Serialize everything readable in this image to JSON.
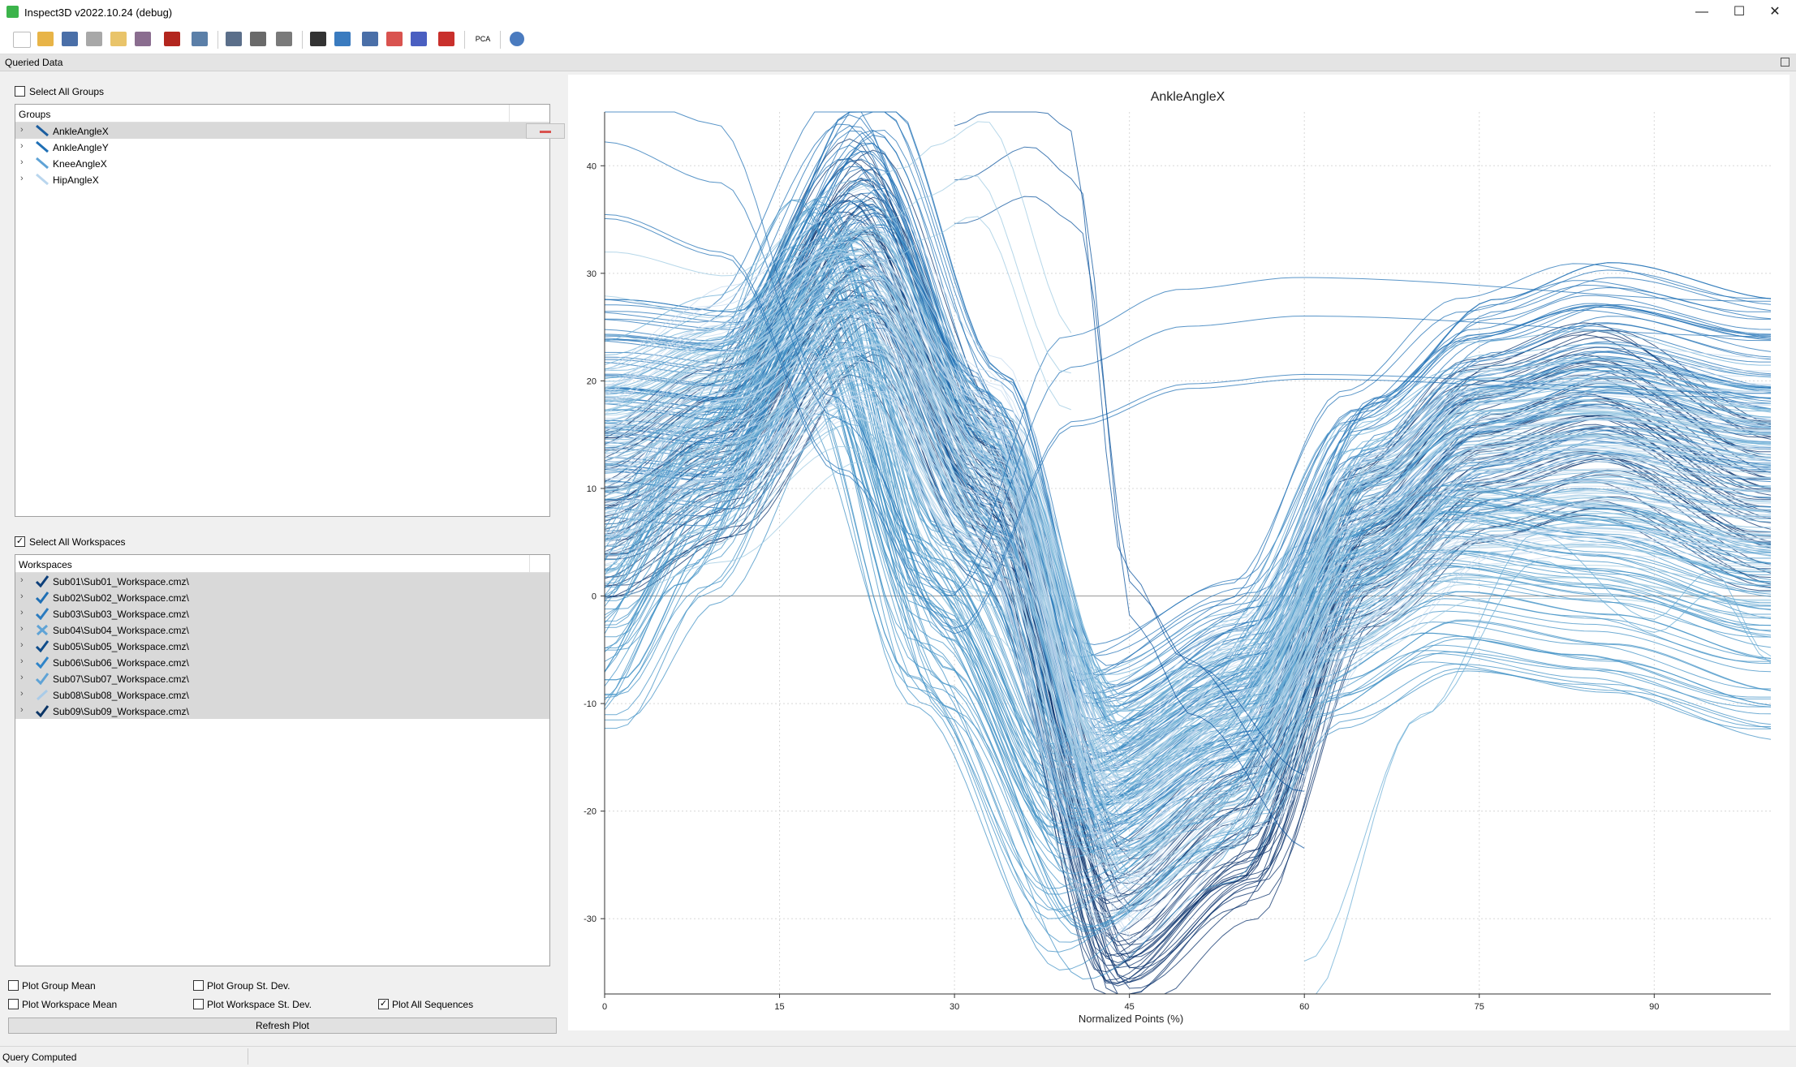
{
  "window": {
    "title": "Inspect3D v2022.10.24 (debug)",
    "min": "—",
    "max": "☐",
    "close": "✕"
  },
  "toolbar": {
    "icons": [
      "new-file",
      "open-folder",
      "save",
      "save-disabled",
      "measure",
      "export-pdf",
      "import",
      "dropdown-menu",
      "save-plot",
      "rotate",
      "curve",
      "sequence",
      "clapper",
      "graph-dropdown",
      "grid",
      "bell-curve",
      "filter-off",
      "pca-dropdown",
      "help-dropdown"
    ],
    "pca_label": "PCA"
  },
  "panel": {
    "title": "Queried Data"
  },
  "groups": {
    "select_all_label": "Select All Groups",
    "select_all_checked": false,
    "header": "Groups",
    "items": [
      {
        "label": "AnkleAngleX",
        "color": "#1a5d9f",
        "selected": true
      },
      {
        "label": "AnkleAngleY",
        "color": "#1f6fb5",
        "selected": false
      },
      {
        "label": "KneeAngleX",
        "color": "#5fa3d6",
        "selected": false
      },
      {
        "label": "HipAngleX",
        "color": "#b9d6ee",
        "selected": false
      }
    ]
  },
  "workspaces": {
    "select_all_label": "Select All Workspaces",
    "select_all_checked": true,
    "header": "Workspaces",
    "items": [
      {
        "label": "Sub01\\Sub01_Workspace.cmz\\",
        "mark": "check",
        "color": "#0d3f7a"
      },
      {
        "label": "Sub02\\Sub02_Workspace.cmz\\",
        "mark": "check",
        "color": "#1f6fb5"
      },
      {
        "label": "Sub03\\Sub03_Workspace.cmz\\",
        "mark": "check",
        "color": "#2b7bbf"
      },
      {
        "label": "Sub04\\Sub04_Workspace.cmz\\",
        "mark": "cross",
        "color": "#5fa3d6"
      },
      {
        "label": "Sub05\\Sub05_Workspace.cmz\\",
        "mark": "check",
        "color": "#0f4c8a"
      },
      {
        "label": "Sub06\\Sub06_Workspace.cmz\\",
        "mark": "check",
        "color": "#2f84c8"
      },
      {
        "label": "Sub07\\Sub07_Workspace.cmz\\",
        "mark": "check",
        "color": "#5fa3d6"
      },
      {
        "label": "Sub08\\Sub08_Workspace.cmz\\",
        "mark": "slash",
        "color": "#a9cbe8"
      },
      {
        "label": "Sub09\\Sub09_Workspace.cmz\\",
        "mark": "check",
        "color": "#0b3566"
      }
    ]
  },
  "options": {
    "plot_group_mean": {
      "label": "Plot Group Mean",
      "checked": false
    },
    "plot_group_sd": {
      "label": "Plot Group St. Dev.",
      "checked": false
    },
    "plot_workspace_mean": {
      "label": "Plot Workspace Mean",
      "checked": false
    },
    "plot_workspace_sd": {
      "label": "Plot Workspace St. Dev.",
      "checked": false
    },
    "plot_all_sequences": {
      "label": "Plot All Sequences",
      "checked": true
    }
  },
  "refresh_label": "Refresh Plot",
  "status": "Query Computed",
  "chart_data": {
    "type": "line",
    "title": "AnkleAngleX",
    "xlabel": "Normalized Points (%)",
    "ylabel": "",
    "xlim": [
      0,
      100
    ],
    "ylim": [
      -37,
      45
    ],
    "xticks": [
      0,
      15,
      30,
      45,
      60,
      75,
      90
    ],
    "yticks": [
      -30,
      -20,
      -10,
      0,
      10,
      20,
      30,
      40
    ],
    "grid": true,
    "legend": "none",
    "series": [
      {
        "color": "#08306b",
        "count": 45,
        "spread": 2.5,
        "x": [
          0,
          10,
          22,
          33,
          44,
          55,
          65,
          75,
          85,
          100
        ],
        "y": [
          8,
          14,
          32,
          10,
          -31,
          -22,
          5,
          14,
          17,
          9
        ]
      },
      {
        "color": "#2171b5",
        "count": 60,
        "spread": 3,
        "x": [
          0,
          10,
          22,
          33,
          42,
          55,
          65,
          75,
          85,
          100
        ],
        "y": [
          18,
          17,
          36,
          12,
          -15,
          -8,
          10,
          18,
          21,
          18
        ]
      },
      {
        "color": "#4292c6",
        "count": 60,
        "spread": 3,
        "x": [
          0,
          8,
          18,
          28,
          40,
          52,
          62,
          72,
          85,
          100
        ],
        "y": [
          -3,
          9,
          28,
          -2,
          -24,
          -16,
          -3,
          2,
          0,
          -4
        ]
      },
      {
        "color": "#6baed6",
        "count": 55,
        "spread": 3,
        "x": [
          0,
          10,
          22,
          33,
          44,
          55,
          65,
          75,
          85,
          100
        ],
        "y": [
          14,
          18,
          28,
          10,
          -18,
          -12,
          8,
          14,
          15,
          12
        ]
      },
      {
        "color": "#c6dbef",
        "count": 55,
        "spread": 3,
        "x": [
          0,
          10,
          22,
          33,
          44,
          55,
          65,
          75,
          85,
          100
        ],
        "y": [
          12,
          18,
          26,
          12,
          -22,
          -12,
          4,
          12,
          13,
          12
        ]
      },
      {
        "color": "#9ecae1",
        "count": 30,
        "spread": 3,
        "x": [
          0,
          10,
          22,
          33,
          44,
          55,
          65,
          75,
          85,
          100
        ],
        "y": [
          10,
          14,
          25,
          6,
          -20,
          -14,
          4,
          10,
          10,
          8
        ]
      },
      {
        "color": "#2171b5",
        "count": 4,
        "spread": 1,
        "x": [
          0,
          10,
          20,
          30,
          40,
          50,
          60,
          100
        ],
        "y": [
          42,
          38,
          15,
          -2,
          20,
          24,
          25,
          23
        ]
      },
      {
        "color": "#08519c",
        "count": 3,
        "spread": 1,
        "x": [
          30,
          36,
          40,
          45,
          50,
          60
        ],
        "y": [
          40,
          43,
          40,
          0,
          -8,
          -20
        ]
      },
      {
        "color": "#6baed6",
        "count": 2,
        "spread": 1,
        "x": [
          60,
          70,
          80,
          90,
          95,
          100
        ],
        "y": [
          -34,
          -10,
          5,
          -2,
          2,
          -5
        ]
      },
      {
        "color": "#9ecae1",
        "count": 3,
        "spread": 1,
        "x": [
          0,
          10,
          20,
          25,
          28,
          32,
          40
        ],
        "y": [
          27,
          25,
          32,
          34,
          36,
          38,
          20
        ]
      }
    ]
  }
}
